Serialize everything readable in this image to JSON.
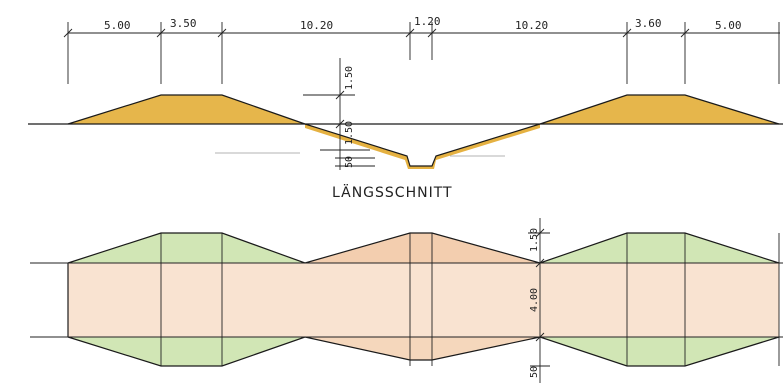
{
  "dimensions_top": {
    "d1": "5.00",
    "d2": "3.50",
    "d3": "10.20",
    "d4": "1.20",
    "d5": "10.20",
    "d6": "3.60",
    "d7": "5.00"
  },
  "dimensions_vertical": {
    "height_upper": "1.50",
    "height_lower": "1.50",
    "channel_depth": "50",
    "plan_upper": "1.50",
    "plan_width": "4.00",
    "plan_lower": "50"
  },
  "section_title": "LÄNGSSCHNITT",
  "colors": {
    "cut_fill": "#e2a92c",
    "plan_green": "#c9e2a8",
    "plan_peach": "#f2c9a6",
    "plan_light": "#f7dcc6"
  }
}
